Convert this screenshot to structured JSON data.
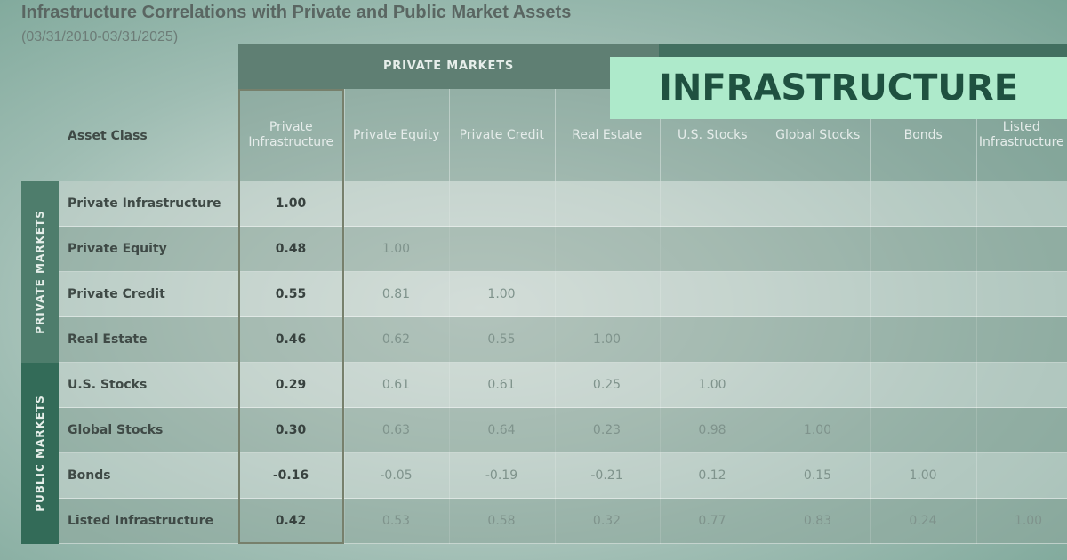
{
  "title": "Infrastructure Correlations with Private and Public Market Assets",
  "subtitle": "(03/31/2010-03/31/2025)",
  "banner": "INFRASTRUCTURE",
  "asset_class_header": "Asset Class",
  "groups": {
    "private_columns": "PRIVATE MARKETS",
    "private_rows": "PRIVATE MARKETS",
    "public_rows": "PUBLIC MARKETS"
  },
  "colors": {
    "banner_bg": "#aeeacb",
    "banner_text": "#1f5140",
    "highlight_border": "#77806c"
  },
  "chart_data": {
    "type": "table",
    "title": "Infrastructure Correlations with Private and Public Market Assets",
    "subtitle": "(03/31/2010-03/31/2025)",
    "columns": [
      "Private Infrastructure",
      "Private Equity",
      "Private Credit",
      "Real Estate",
      "U.S. Stocks",
      "Global Stocks",
      "Bonds",
      "Listed Infrastructure"
    ],
    "rows": [
      {
        "label": "Private Infrastructure",
        "values": [
          "1.00",
          "",
          "",
          "",
          "",
          "",
          "",
          ""
        ]
      },
      {
        "label": "Private Equity",
        "values": [
          "0.48",
          "1.00",
          "",
          "",
          "",
          "",
          "",
          ""
        ]
      },
      {
        "label": "Private Credit",
        "values": [
          "0.55",
          "0.81",
          "1.00",
          "",
          "",
          "",
          "",
          ""
        ]
      },
      {
        "label": "Real Estate",
        "values": [
          "0.46",
          "0.62",
          "0.55",
          "1.00",
          "",
          "",
          "",
          ""
        ]
      },
      {
        "label": "U.S. Stocks",
        "values": [
          "0.29",
          "0.61",
          "0.61",
          "0.25",
          "1.00",
          "",
          "",
          ""
        ]
      },
      {
        "label": "Global Stocks",
        "values": [
          "0.30",
          "0.63",
          "0.64",
          "0.23",
          "0.98",
          "1.00",
          "",
          ""
        ]
      },
      {
        "label": "Bonds",
        "values": [
          "-0.16",
          "-0.05",
          "-0.19",
          "-0.21",
          "0.12",
          "0.15",
          "1.00",
          ""
        ]
      },
      {
        "label": "Listed Infrastructure",
        "values": [
          "0.42",
          "0.53",
          "0.58",
          "0.32",
          "0.77",
          "0.83",
          "0.24",
          "1.00"
        ]
      }
    ]
  }
}
